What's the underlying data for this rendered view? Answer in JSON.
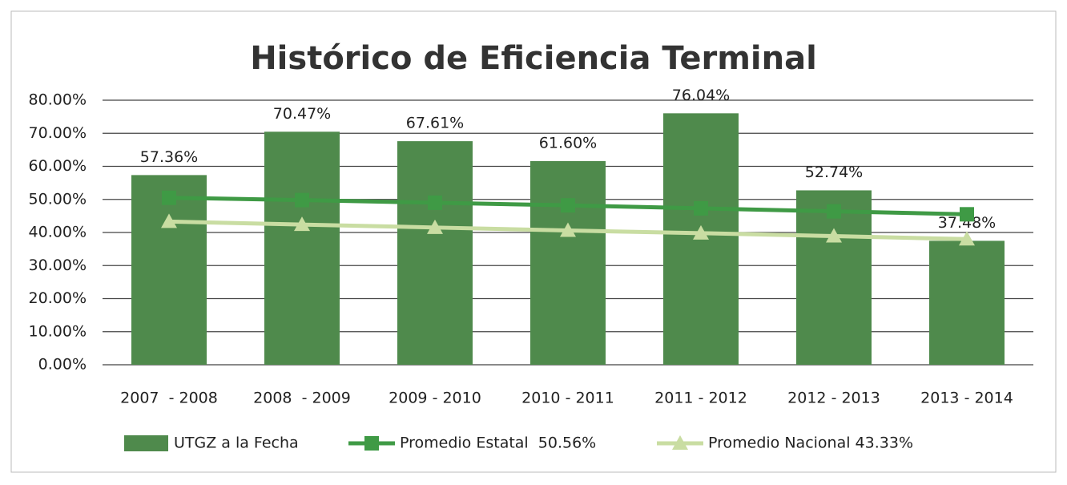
{
  "chart_data": {
    "type": "bar",
    "title": "Histórico de Eficiencia Terminal",
    "categories": [
      "2007  - 2008",
      "2008  - 2009",
      "2009 - 2010",
      "2010 - 2011",
      "2011 - 2012",
      "2012 - 2013",
      "2013 - 2014"
    ],
    "series": [
      {
        "name": "UTGZ a la Fecha",
        "type": "bar",
        "color": "#4f8a4c",
        "values": [
          57.36,
          70.47,
          67.61,
          61.6,
          76.04,
          52.74,
          37.48
        ],
        "value_labels": [
          "57.36%",
          "70.47%",
          "67.61%",
          "61.60%",
          "76.04%",
          "52.74%",
          "37.48%"
        ]
      },
      {
        "name": "Promedio Estatal  50.56%",
        "type": "line",
        "marker": "square",
        "color": "#3f9a45",
        "values": [
          50.5,
          49.8,
          49.0,
          48.2,
          47.3,
          46.4,
          45.5
        ]
      },
      {
        "name": "Promedio Nacional 43.33%",
        "type": "line",
        "marker": "triangle",
        "color": "#c9dda2",
        "values": [
          43.3,
          42.4,
          41.5,
          40.6,
          39.8,
          38.9,
          38.0
        ]
      }
    ],
    "ylim": [
      0,
      80
    ],
    "yticks": [
      {
        "value": 0,
        "label": "0.00%"
      },
      {
        "value": 10,
        "label": "10.00%"
      },
      {
        "value": 20,
        "label": "20.00%"
      },
      {
        "value": 30,
        "label": "30.00%"
      },
      {
        "value": 40,
        "label": "40.00%"
      },
      {
        "value": 50,
        "label": "50.00%"
      },
      {
        "value": 60,
        "label": "60.00%"
      },
      {
        "value": 70,
        "label": "70.00%"
      },
      {
        "value": 80,
        "label": "80.00%"
      }
    ],
    "grid": true,
    "legend": "bottom"
  }
}
